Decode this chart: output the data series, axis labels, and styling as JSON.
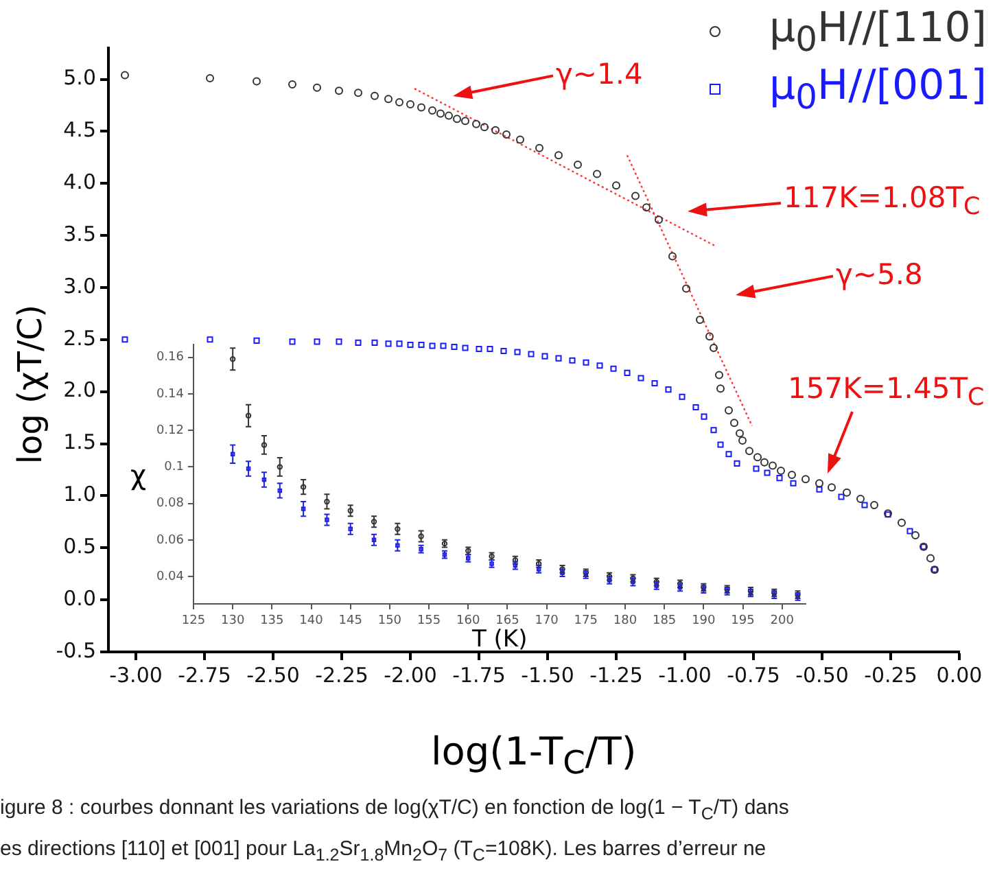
{
  "chart_data": [
    {
      "type": "scatter",
      "xlabel": "log(1-T$_{C}$/T)",
      "ylabel": "log (χT/C)",
      "xlim": [
        -3.1,
        0
      ],
      "ylim": [
        -0.5,
        5.3
      ],
      "xticks": [
        {
          "value": -3,
          "label": "-3.00"
        },
        {
          "value": -2.75,
          "label": "-2.75"
        },
        {
          "value": -2.5,
          "label": "-2.50"
        },
        {
          "value": -2.25,
          "label": "-2.25"
        },
        {
          "value": -2,
          "label": "-2.00"
        },
        {
          "value": -1.75,
          "label": "-1.75"
        },
        {
          "value": -1.5,
          "label": "-1.50"
        },
        {
          "value": -1.25,
          "label": "-1.25"
        },
        {
          "value": -1,
          "label": "-1.00"
        },
        {
          "value": -0.75,
          "label": "-0.75"
        },
        {
          "value": -0.5,
          "label": "-0.50"
        },
        {
          "value": -0.25,
          "label": "-0.25"
        },
        {
          "value": 0,
          "label": "0.00"
        }
      ],
      "yticks": [
        -0.5,
        {
          "value": 0,
          "label": "0.0"
        },
        0.5,
        {
          "value": 1,
          "label": "1.0"
        },
        1.5,
        {
          "value": 2,
          "label": "2.0"
        },
        2.5,
        {
          "value": 3,
          "label": "3.0"
        },
        3.5,
        {
          "value": 4,
          "label": "4.0"
        },
        4.5,
        {
          "value": 5,
          "label": "5.0"
        }
      ],
      "grid": false,
      "legend": "top right",
      "series": [
        {
          "name": "μ$_{0}$H//[110]",
          "color": "#333333",
          "marker": "circle",
          "x": [
            -3.04,
            -2.73,
            -2.56,
            -2.43,
            -2.34,
            -2.26,
            -2.19,
            -2.13,
            -2.08,
            -2.04,
            -2.0,
            -1.96,
            -1.92,
            -1.89,
            -1.86,
            -1.83,
            -1.8,
            -1.76,
            -1.73,
            -1.69,
            -1.65,
            -1.6,
            -1.53,
            -1.46,
            -1.39,
            -1.32,
            -1.25,
            -1.18,
            -1.14,
            -1.095,
            -1.045,
            -0.995,
            -0.945,
            -0.91,
            -0.895,
            -0.875,
            -0.87,
            -0.84,
            -0.82,
            -0.8,
            -0.79,
            -0.765,
            -0.735,
            -0.71,
            -0.68,
            -0.65,
            -0.61,
            -0.56,
            -0.51,
            -0.465,
            -0.41,
            -0.36,
            -0.31,
            -0.26,
            -0.21,
            -0.16,
            -0.13,
            -0.105,
            -0.09
          ],
          "values": [
            5.04,
            5.01,
            4.98,
            4.95,
            4.92,
            4.89,
            4.87,
            4.84,
            4.81,
            4.78,
            4.76,
            4.73,
            4.7,
            4.67,
            4.65,
            4.62,
            4.6,
            4.57,
            4.54,
            4.51,
            4.47,
            4.42,
            4.34,
            4.27,
            4.18,
            4.09,
            3.98,
            3.88,
            3.77,
            3.65,
            3.3,
            2.99,
            2.69,
            2.53,
            2.42,
            2.16,
            2.03,
            1.82,
            1.7,
            1.6,
            1.53,
            1.43,
            1.37,
            1.32,
            1.29,
            1.24,
            1.2,
            1.16,
            1.12,
            1.08,
            1.03,
            0.97,
            0.91,
            0.83,
            0.74,
            0.62,
            0.51,
            0.4,
            0.29
          ]
        },
        {
          "name": "μ$_{0}$H//[001]",
          "color": "#1a1aff",
          "marker": "square",
          "x": [
            -3.04,
            -2.73,
            -2.56,
            -2.43,
            -2.34,
            -2.26,
            -2.19,
            -2.13,
            -2.08,
            -2.04,
            -2.0,
            -1.96,
            -1.92,
            -1.88,
            -1.84,
            -1.8,
            -1.75,
            -1.71,
            -1.66,
            -1.61,
            -1.56,
            -1.51,
            -1.46,
            -1.41,
            -1.36,
            -1.31,
            -1.26,
            -1.21,
            -1.16,
            -1.11,
            -1.06,
            -1.01,
            -0.96,
            -0.93,
            -0.895,
            -0.87,
            -0.84,
            -0.81,
            -0.74,
            -0.7,
            -0.655,
            -0.605,
            -0.51,
            -0.43,
            -0.345,
            -0.26,
            -0.18,
            -0.13,
            -0.09
          ],
          "values": [
            2.5,
            2.5,
            2.49,
            2.48,
            2.48,
            2.48,
            2.47,
            2.47,
            2.46,
            2.46,
            2.45,
            2.45,
            2.44,
            2.44,
            2.43,
            2.42,
            2.41,
            2.41,
            2.39,
            2.38,
            2.36,
            2.34,
            2.32,
            2.3,
            2.28,
            2.25,
            2.22,
            2.18,
            2.13,
            2.08,
            2.02,
            1.95,
            1.85,
            1.76,
            1.63,
            1.49,
            1.4,
            1.31,
            1.26,
            1.22,
            1.17,
            1.12,
            1.06,
            0.99,
            0.91,
            0.82,
            0.66,
            0.51,
            0.29
          ]
        },
        {
          "type": "line",
          "color": "#ff3333",
          "line_style": "dotted",
          "marker": "none",
          "x": [
            -1.985,
            -0.89
          ],
          "values": [
            4.91,
            3.4
          ]
        },
        {
          "type": "line",
          "color": "#ff3333",
          "line_style": "dotted",
          "marker": "none",
          "x": [
            -1.21,
            -0.755
          ],
          "values": [
            4.27,
            1.67
          ]
        }
      ],
      "annotations": [
        "γ~1.4",
        "117K=1.08T$_{C}$",
        "γ~5.8",
        "157K=1.45T$_{C}$",
        "igure 8 : courbes donnant les variations de log(χT/C) en fonction de log(1 − T$_{C}$/T) dans",
        "es directions [110] et [001] pour La$_{1.2}$Sr$_{1.8}$Mn$_{2}$O$_{7}$ (T$_{C}$=108K). Les barres d’erreur ne"
      ]
    },
    {
      "type": "scatter",
      "xlabel": "T (K)",
      "ylabel": "χ",
      "xlim": [
        125,
        203
      ],
      "ylim": [
        0.025,
        0.167
      ],
      "xticks": [
        125,
        130,
        135,
        140,
        145,
        150,
        155,
        160,
        165,
        170,
        175,
        180,
        185,
        190,
        195,
        200
      ],
      "yticks": [
        0.04,
        0.06,
        0.08,
        0.1,
        0.12,
        0.14,
        0.16
      ],
      "grid": false,
      "x": [
        130,
        132,
        134,
        136,
        139,
        142,
        145,
        148,
        151,
        154,
        157,
        160,
        163,
        166,
        169,
        172,
        175,
        178,
        181,
        184,
        187,
        190,
        193,
        196,
        199,
        202
      ],
      "series": [
        {
          "color": "#333333",
          "marker": "circle",
          "values": [
            0.159,
            0.128,
            0.112,
            0.1,
            0.089,
            0.081,
            0.076,
            0.07,
            0.066,
            0.062,
            0.058,
            0.054,
            0.051,
            0.049,
            0.047,
            0.044,
            0.042,
            0.04,
            0.039,
            0.037,
            0.036,
            0.034,
            0.033,
            0.032,
            0.031,
            0.03
          ],
          "errors": [
            0.006,
            0.006,
            0.005,
            0.005,
            0.004,
            0.004,
            0.003,
            0.003,
            0.003,
            0.003,
            0.002,
            0.002,
            0.002,
            0.002,
            0.002,
            0.002,
            0.002,
            0.002,
            0.002,
            0.002,
            0.002,
            0.002,
            0.002,
            0.002,
            0.002,
            0.002
          ]
        },
        {
          "color": "#2020e0",
          "marker": "square",
          "values": [
            0.107,
            0.099,
            0.093,
            0.087,
            0.077,
            0.071,
            0.066,
            0.06,
            0.057,
            0.055,
            0.052,
            0.05,
            0.047,
            0.046,
            0.044,
            0.042,
            0.041,
            0.038,
            0.037,
            0.035,
            0.034,
            0.033,
            0.032,
            0.031,
            0.03,
            0.029
          ],
          "errors": [
            0.005,
            0.004,
            0.004,
            0.004,
            0.004,
            0.003,
            0.003,
            0.003,
            0.003,
            0.002,
            0.002,
            0.002,
            0.002,
            0.002,
            0.002,
            0.002,
            0.002,
            0.002,
            0.002,
            0.002,
            0.002,
            0.002,
            0.002,
            0.002,
            0.002,
            0.002
          ]
        }
      ]
    }
  ]
}
